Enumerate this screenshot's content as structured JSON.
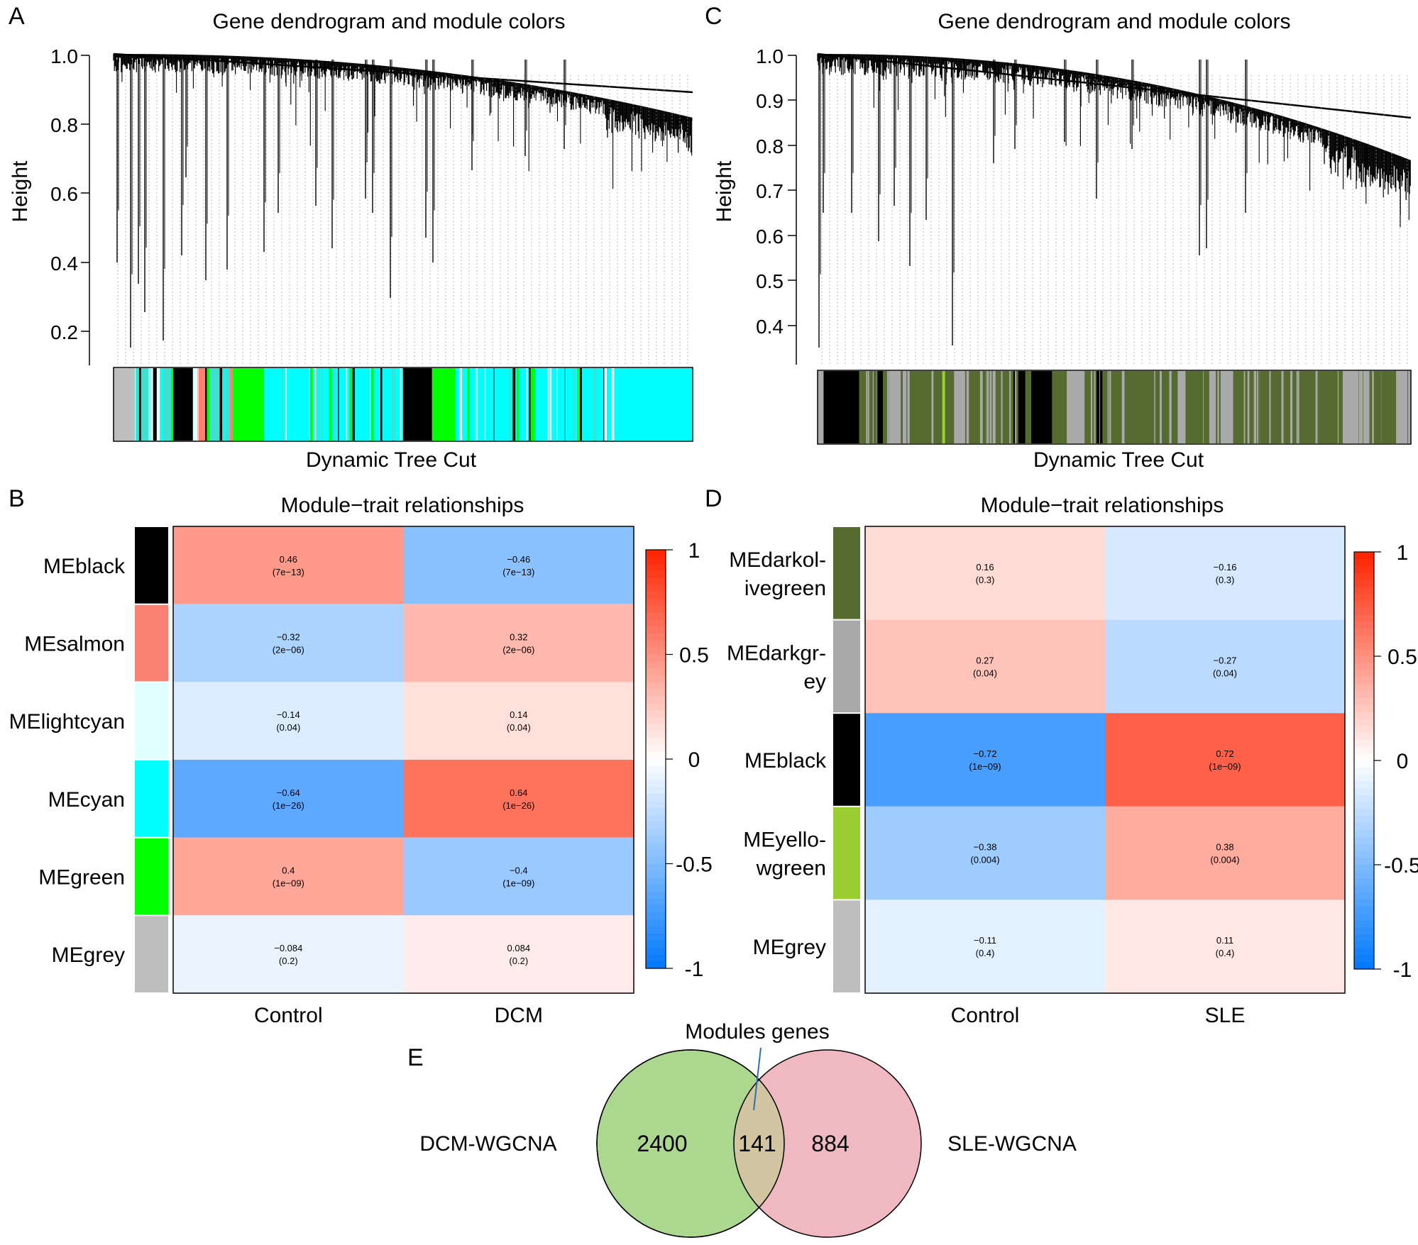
{
  "panels": {
    "A": {
      "letter": "A",
      "title": "Gene dendrogram and module colors",
      "ylabel": "Height",
      "xlabel": "Dynamic Tree Cut",
      "yticks": [
        "1.0",
        "0.8",
        "0.6",
        "0.4",
        "0.2"
      ]
    },
    "B": {
      "letter": "B",
      "title": "Module−trait relationships",
      "legend_ticks": [
        "1",
        "0.5",
        "0",
        "-0.5",
        "-1"
      ]
    },
    "C": {
      "letter": "C",
      "title": "Gene dendrogram and module colors",
      "ylabel": "Height",
      "xlabel": "Dynamic Tree Cut",
      "yticks": [
        "1.0",
        "0.9",
        "0.8",
        "0.7",
        "0.6",
        "0.5",
        "0.4"
      ]
    },
    "D": {
      "letter": "D",
      "title": "Module−trait relationships",
      "legend_ticks": [
        "1",
        "0.5",
        "0",
        "-0.5",
        "-1"
      ]
    },
    "E": {
      "letter": "E",
      "annotation": "Modules genes",
      "left_set": "DCM-WGCNA",
      "right_set": "SLE-WGCNA",
      "left_only": "2400",
      "overlap": "141",
      "right_only": "884",
      "left_color": "#acd78f",
      "right_color": "#f0b9c1"
    }
  },
  "chart_data": [
    {
      "id": "A",
      "type": "dendrogram",
      "title": "Gene dendrogram and module colors",
      "ylabel": "Height",
      "xlabel": "Dynamic Tree Cut",
      "ylim": [
        0.1,
        1.0
      ],
      "module_colors": [
        "grey",
        "turquoise",
        "lightcyan",
        "black",
        "salmon",
        "green",
        "cyan"
      ]
    },
    {
      "id": "B",
      "type": "heatmap",
      "title": "Module−trait relationships",
      "columns": [
        "Control",
        "DCM"
      ],
      "rows": [
        {
          "name": "MEblack",
          "color": "#000000",
          "values": [
            0.46,
            -0.46
          ],
          "labels": [
            "0.46",
            "−0.46"
          ],
          "pvalues": [
            "(7e−13)",
            "(7e−13)"
          ]
        },
        {
          "name": "MEsalmon",
          "color": "#fa8072",
          "values": [
            -0.32,
            0.32
          ],
          "labels": [
            "−0.32",
            "0.32"
          ],
          "pvalues": [
            "(2e−06)",
            "(2e−06)"
          ]
        },
        {
          "name": "MElightcyan",
          "color": "#e0ffff",
          "values": [
            -0.14,
            0.14
          ],
          "labels": [
            "−0.14",
            "0.14"
          ],
          "pvalues": [
            "(0.04)",
            "(0.04)"
          ]
        },
        {
          "name": "MEcyan",
          "color": "#00ffff",
          "values": [
            -0.64,
            0.64
          ],
          "labels": [
            "−0.64",
            "0.64"
          ],
          "pvalues": [
            "(1e−26)",
            "(1e−26)"
          ]
        },
        {
          "name": "MEgreen",
          "color": "#00ff00",
          "values": [
            0.4,
            -0.4
          ],
          "labels": [
            "0.4",
            "−0.4"
          ],
          "pvalues": [
            "(1e−09)",
            "(1e−09)"
          ]
        },
        {
          "name": "MEgrey",
          "color": "#bebebe",
          "values": [
            -0.084,
            0.084
          ],
          "labels": [
            "−0.084",
            "0.084"
          ],
          "pvalues": [
            "(0.2)",
            "(0.2)"
          ]
        }
      ],
      "scale": [
        -1,
        1
      ]
    },
    {
      "id": "C",
      "type": "dendrogram",
      "title": "Gene dendrogram and module colors",
      "ylabel": "Height",
      "xlabel": "Dynamic Tree Cut",
      "ylim": [
        0.35,
        1.0
      ],
      "module_colors": [
        "darkolivegreen",
        "black",
        "darkgrey",
        "yellowgreen",
        "grey"
      ]
    },
    {
      "id": "D",
      "type": "heatmap",
      "title": "Module−trait relationships",
      "columns": [
        "Control",
        "SLE"
      ],
      "rows": [
        {
          "name": [
            "MEdarkol-",
            "ivegreen"
          ],
          "color": "#556b2f",
          "values": [
            0.16,
            -0.16
          ],
          "labels": [
            "0.16",
            "−0.16"
          ],
          "pvalues": [
            "(0.3)",
            "(0.3)"
          ]
        },
        {
          "name": [
            "MEdarkgr-",
            "ey"
          ],
          "color": "#a9a9a9",
          "values": [
            0.27,
            -0.27
          ],
          "labels": [
            "0.27",
            "−0.27"
          ],
          "pvalues": [
            "(0.04)",
            "(0.04)"
          ]
        },
        {
          "name": [
            "MEblack"
          ],
          "color": "#000000",
          "values": [
            -0.72,
            0.72
          ],
          "labels": [
            "−0.72",
            "0.72"
          ],
          "pvalues": [
            "(1e−09)",
            "(1e−09)"
          ]
        },
        {
          "name": [
            "MEyello-",
            "wgreen"
          ],
          "color": "#9acd32",
          "values": [
            -0.38,
            0.38
          ],
          "labels": [
            "−0.38",
            "0.38"
          ],
          "pvalues": [
            "(0.004)",
            "(0.004)"
          ]
        },
        {
          "name": [
            "MEgrey"
          ],
          "color": "#bebebe",
          "values": [
            -0.11,
            0.11
          ],
          "labels": [
            "−0.11",
            "0.11"
          ],
          "pvalues": [
            "(0.4)",
            "(0.4)"
          ]
        }
      ],
      "scale": [
        -1,
        1
      ]
    },
    {
      "id": "E",
      "type": "venn",
      "sets": [
        "DCM-WGCNA",
        "SLE-WGCNA"
      ],
      "values": {
        "left_only": 2400,
        "overlap": 141,
        "right_only": 884
      }
    }
  ]
}
